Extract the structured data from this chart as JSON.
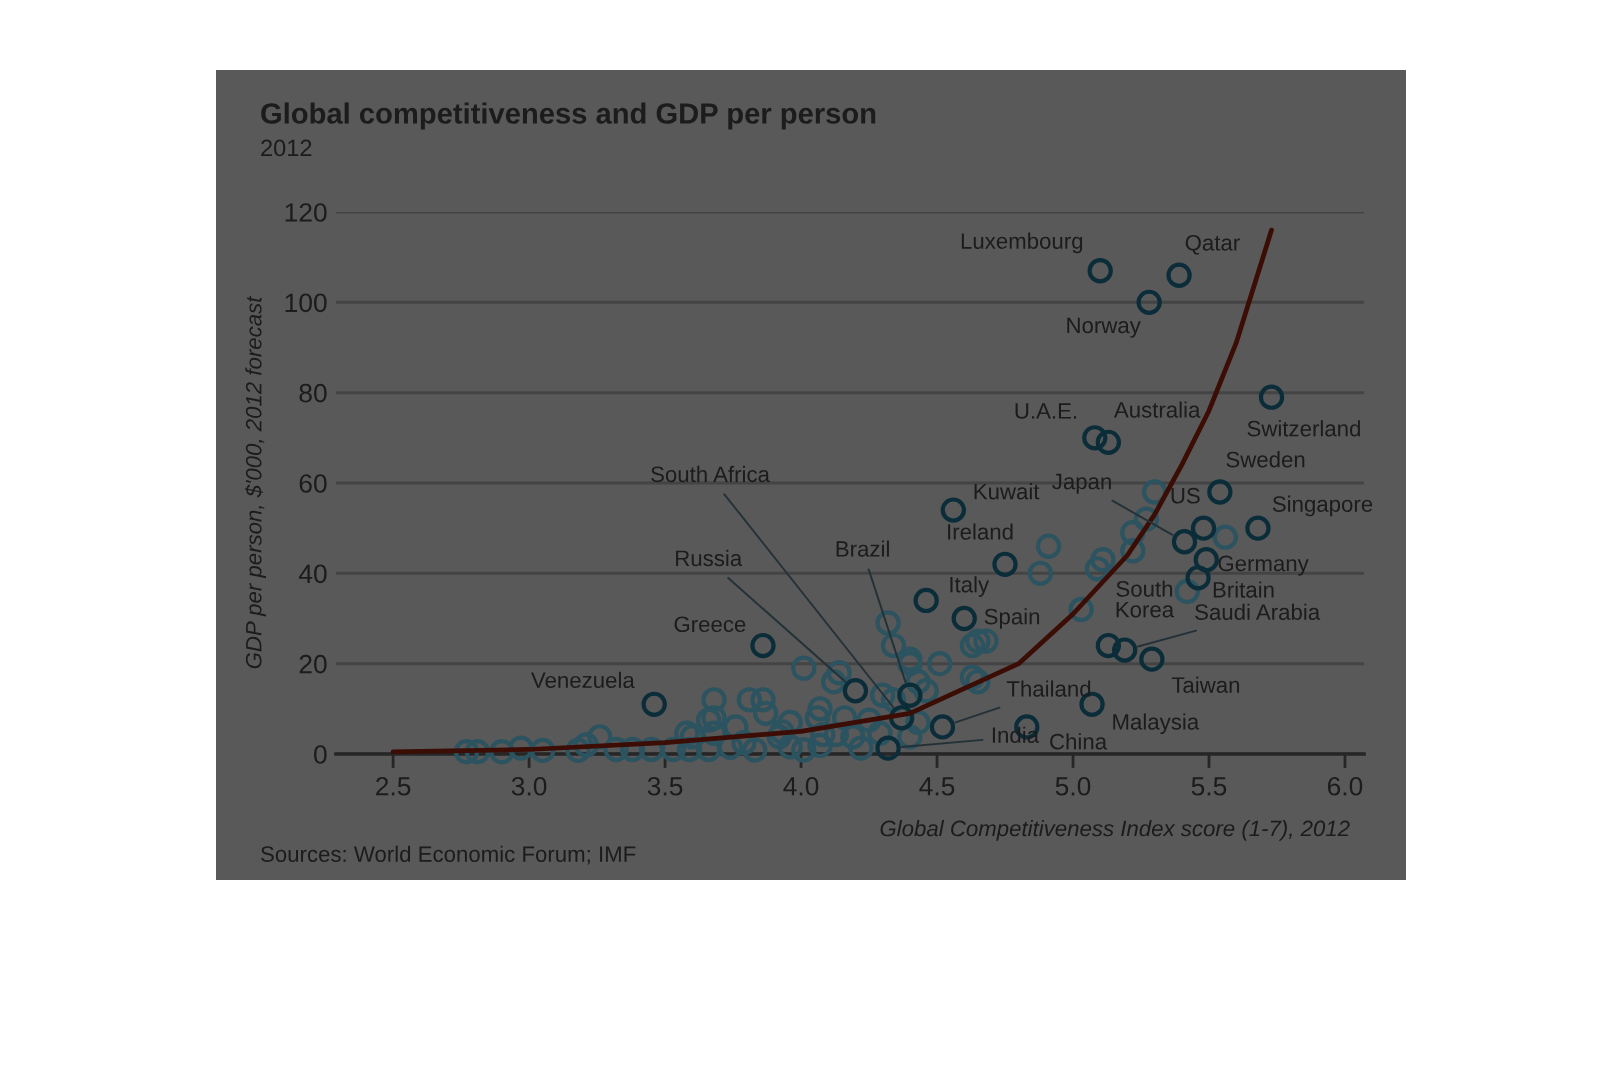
{
  "chart_data": {
    "type": "scatter",
    "title": "Global competitiveness and GDP per person",
    "subtitle": "2012",
    "xlabel": "Global Competitiveness Index score (1-7), 2012",
    "ylabel": "GDP per person, $'000, 2012 forecast",
    "xlim": [
      2.29,
      6.07
    ],
    "ylim": [
      0,
      120
    ],
    "xticks": [
      2.5,
      {
        "value": 3,
        "label": "3.0"
      },
      3.5,
      {
        "value": 4,
        "label": "4.0"
      },
      4.5,
      {
        "value": 5,
        "label": "5.0"
      },
      5.5,
      {
        "value": 6,
        "label": "6.0"
      }
    ],
    "yticks": [
      0,
      20,
      40,
      60,
      80,
      100,
      120
    ],
    "grid": "y",
    "series": [
      {
        "color": "#2b5360",
        "marker": "circle",
        "x": [
          2.77,
          2.81,
          2.9,
          2.97,
          3.05,
          3.18,
          3.21,
          3.26,
          3.32,
          3.38,
          3.45,
          3.53,
          3.59,
          3.66,
          3.58,
          3.68,
          3.81,
          3.68,
          3.76,
          3.68,
          3.6,
          3.74,
          3.79,
          3.86,
          3.87,
          3.83,
          3.93,
          4.01,
          4.01,
          4.06,
          4.07,
          4.08,
          4.14,
          4.12,
          4.16,
          4.19,
          4.22,
          4.25,
          4.29,
          4.3,
          4.34,
          4.43,
          4.4,
          4.43,
          4.46,
          4.51,
          4.63,
          4.65,
          4.68,
          4.65,
          4.63,
          3.92,
          3.96,
          3.96,
          4.13,
          4.07,
          4.4,
          4.32,
          4.34,
          4.4,
          4.91,
          4.88,
          5.03,
          5.11,
          5.09,
          5.22,
          5.22,
          5.27,
          5.3,
          5.56,
          5.42,
          3.66
        ],
        "values": [
          0.5,
          0.5,
          0.5,
          1.3,
          0.8,
          0.8,
          2,
          3.8,
          1,
          1,
          1,
          1,
          1,
          1,
          4.6,
          12,
          12,
          8,
          6,
          4.6,
          3.8,
          1.5,
          2.5,
          12,
          9,
          0.9,
          4.9,
          19,
          0.9,
          8,
          10,
          4.3,
          18,
          16,
          8,
          3.8,
          1.3,
          7.5,
          4.6,
          13,
          12,
          16,
          3.8,
          7,
          14,
          20,
          24,
          25,
          25,
          16,
          17,
          3.8,
          7,
          1.6,
          4.3,
          1.9,
          20,
          29,
          24,
          21,
          46,
          40,
          32,
          43,
          41,
          49,
          45,
          52,
          58,
          48,
          36,
          7.5
        ]
      },
      {
        "color": "#0b2d39",
        "marker": "circle",
        "x": [
          5.1,
          5.39,
          5.28,
          5.73,
          5.08,
          5.13,
          5.54,
          5.68,
          4.56,
          5.41,
          5.48,
          5.49,
          5.46,
          5.13,
          5.19,
          5.29,
          5.07,
          4.83,
          4.52,
          4.32,
          4.4,
          4.46,
          4.6,
          4.75,
          4.37,
          4.2,
          3.86,
          3.46
        ],
        "values": [
          107,
          106,
          100,
          79,
          70,
          69,
          58,
          50,
          54,
          47,
          50,
          43,
          39,
          24,
          23,
          21,
          11,
          6,
          6,
          1.3,
          13,
          34,
          30,
          42,
          8,
          14,
          24,
          11
        ]
      },
      {
        "type": "line",
        "color": "#3b0d05",
        "x": [
          2.5,
          3.0,
          3.5,
          4.0,
          4.4,
          4.8,
          5.0,
          5.2,
          5.3,
          5.4,
          5.5,
          5.6,
          5.73
        ],
        "values": [
          0.5,
          1,
          2.5,
          5,
          9,
          20,
          31,
          44,
          53,
          64,
          76,
          91,
          116
        ]
      }
    ],
    "annotations": [
      {
        "text": "Luxembourg",
        "x": 5.1,
        "y": 107
      },
      {
        "text": "Qatar",
        "x": 5.39,
        "y": 106
      },
      {
        "text": "Norway",
        "x": 5.28,
        "y": 100
      },
      {
        "text": "Switzerland",
        "x": 5.73,
        "y": 79
      },
      {
        "text": "U.A.E.",
        "x": 5.08,
        "y": 70
      },
      {
        "text": "Australia",
        "x": 5.13,
        "y": 69
      },
      {
        "text": "Sweden",
        "x": 5.54,
        "y": 58
      },
      {
        "text": "Singapore",
        "x": 5.68,
        "y": 50
      },
      {
        "text": "Kuwait",
        "x": 4.56,
        "y": 54
      },
      {
        "text": "Japan",
        "x": 5.41,
        "y": 47
      },
      {
        "text": "US",
        "x": 5.48,
        "y": 50
      },
      {
        "text": "Germany",
        "x": 5.49,
        "y": 43
      },
      {
        "text": "Britain",
        "x": 5.46,
        "y": 39
      },
      {
        "text": "South\nKorea",
        "x": 5.13,
        "y": 24
      },
      {
        "text": "Saudi Arabia",
        "x": 5.19,
        "y": 23
      },
      {
        "text": "Taiwan",
        "x": 5.29,
        "y": 21
      },
      {
        "text": "Malaysia",
        "x": 5.07,
        "y": 11
      },
      {
        "text": "China",
        "x": 4.83,
        "y": 6
      },
      {
        "text": "Thailand",
        "x": 4.52,
        "y": 6
      },
      {
        "text": "India",
        "x": 4.32,
        "y": 1.3
      },
      {
        "text": "Brazil",
        "x": 4.4,
        "y": 13
      },
      {
        "text": "Italy",
        "x": 4.46,
        "y": 34
      },
      {
        "text": "Spain",
        "x": 4.6,
        "y": 30
      },
      {
        "text": "Ireland",
        "x": 4.75,
        "y": 42
      },
      {
        "text": "South Africa",
        "x": 4.37,
        "y": 8
      },
      {
        "text": "Russia",
        "x": 4.2,
        "y": 14
      },
      {
        "text": "Greece",
        "x": 3.86,
        "y": 24
      },
      {
        "text": "Venezuela",
        "x": 3.46,
        "y": 11
      },
      "Sources: World Economic Forum; IMF"
    ]
  }
}
